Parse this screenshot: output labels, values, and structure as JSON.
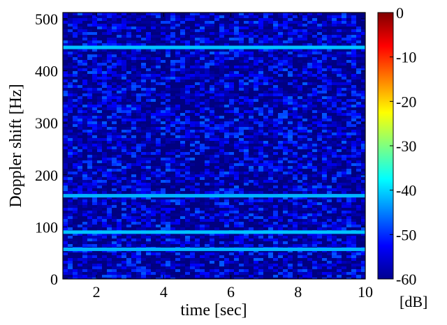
{
  "chart_data": {
    "type": "heatmap",
    "title": "",
    "xlabel": "time [sec]",
    "ylabel": "Doppler shift [Hz]",
    "xlim": [
      1,
      10
    ],
    "ylim": [
      0,
      512
    ],
    "xticks": [
      2,
      4,
      6,
      8,
      10
    ],
    "yticks": [
      0,
      100,
      200,
      300,
      400,
      500
    ],
    "colorbar": {
      "label": "[dB]",
      "range": [
        -60,
        0
      ],
      "ticks": [
        0,
        -10,
        -20,
        -30,
        -40,
        -50,
        -60
      ],
      "colormap": "jet"
    },
    "background_level_db": -55,
    "bands": [
      {
        "doppler_hz": 57,
        "level_db": -42
      },
      {
        "doppler_hz": 90,
        "level_db": -41
      },
      {
        "doppler_hz": 160,
        "level_db": -42
      },
      {
        "doppler_hz": 445,
        "level_db": -41
      }
    ]
  }
}
